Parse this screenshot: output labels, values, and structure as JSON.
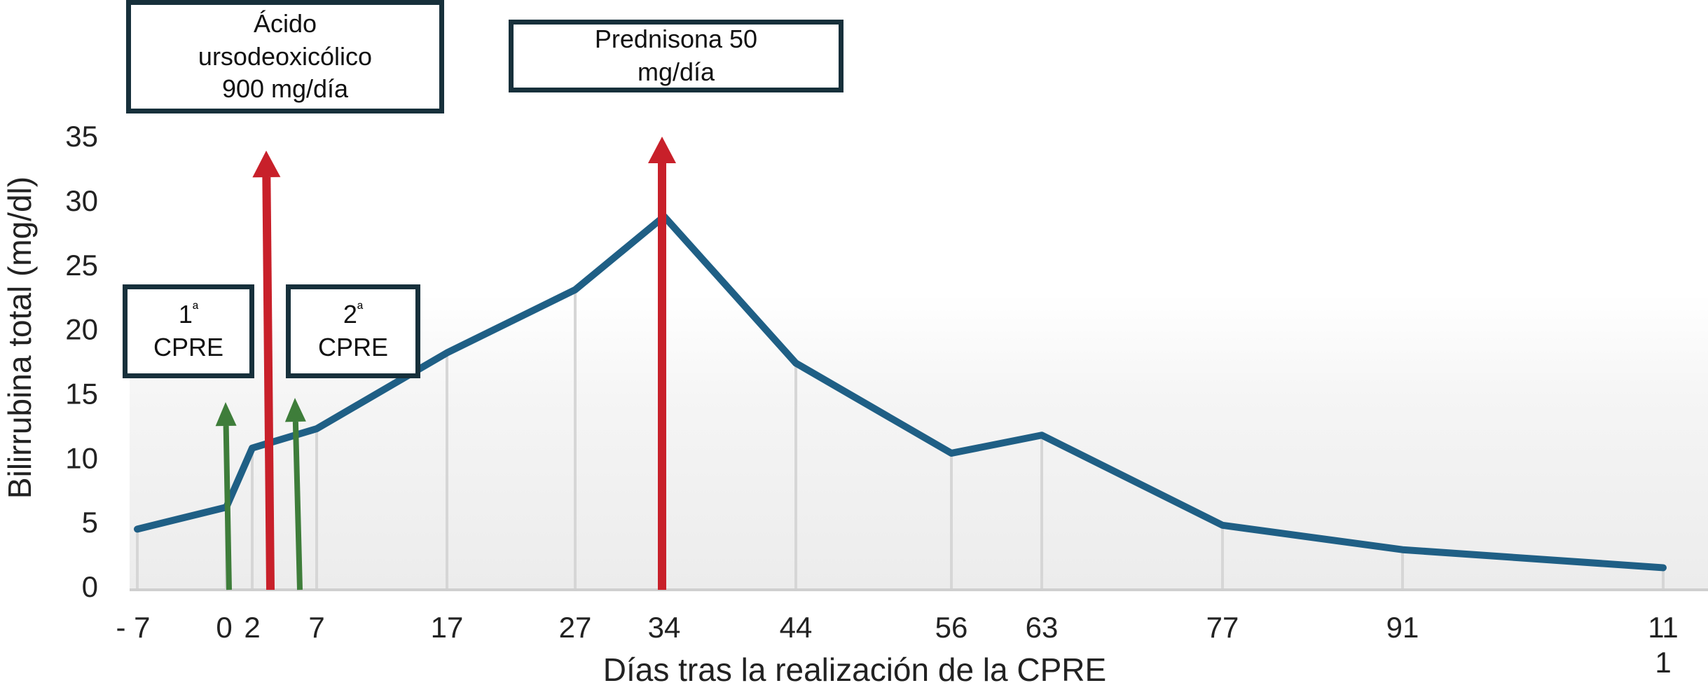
{
  "chart_data": {
    "type": "line",
    "x": [
      -7,
      0,
      2,
      7,
      17,
      27,
      34,
      44,
      56,
      63,
      77,
      91,
      111
    ],
    "x_tick_labels": [
      "- 7",
      "0",
      "2",
      "7",
      "17",
      "27",
      "34",
      "44",
      "56",
      "63",
      "77",
      "91",
      "11\n1"
    ],
    "y": [
      4.5,
      6.2,
      10.8,
      12.3,
      18.2,
      23.1,
      28.8,
      17.4,
      10.4,
      11.8,
      4.8,
      2.9,
      1.5
    ],
    "yticks": [
      0,
      5,
      10,
      15,
      20,
      25,
      30,
      35
    ],
    "ylim": [
      0,
      35
    ],
    "xlabel": "Días tras la realización de la CPRE",
    "ylabel": "Bilirrubina total (mg/dl)",
    "grid": "vertical drop lines at data points",
    "line_color": "#1f5f85",
    "annotations": [
      {
        "kind": "green-arrow",
        "label": "1ª CPRE",
        "line1": "1",
        "sup": "ª",
        "line2": "CPRE"
      },
      {
        "kind": "green-arrow",
        "label": "2ª CPRE",
        "line1": "2",
        "sup": "ª",
        "line2": "CPRE"
      },
      {
        "kind": "red-arrow",
        "label": "Ácido ursodeoxicólico 900 mg/día",
        "lines": [
          "Ácido",
          "ursodeoxicólico",
          "900 mg/día"
        ]
      },
      {
        "kind": "red-arrow",
        "label": "Prednisona 50 mg/día",
        "lines": [
          "Prednisona 50",
          "mg/día"
        ]
      }
    ],
    "colors": {
      "line": "#1f5f85",
      "green_arrow": "#3e7d3a",
      "red_arrow": "#c8202a",
      "box_border": "#17303b"
    }
  }
}
